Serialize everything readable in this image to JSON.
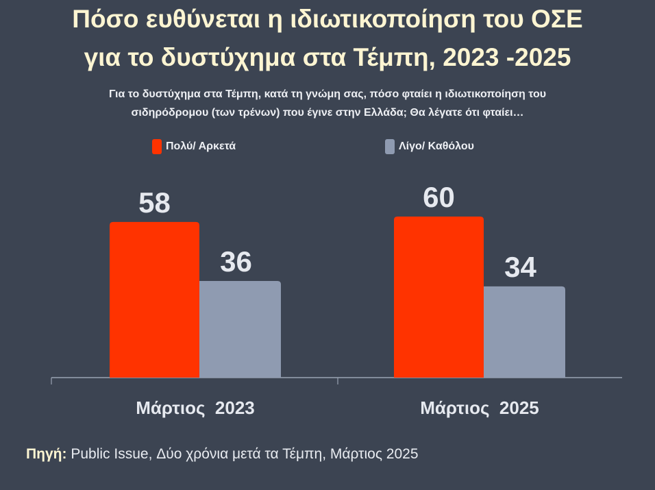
{
  "title_lines": [
    "Πόσο ευθύνεται η ιδιωτικοποίηση του ΟΣΕ",
    "για το δυστύχημα στα Τέμπη, 2023 -2025"
  ],
  "subtitle_lines": [
    "Για το δυστύχημα στα Τέμπη, κατά τη γνώμη σας, πόσο φταίει η ιδιωτικοποίηση του",
    "σιδηρόδρομου (των τρένων) που έγινε στην Ελλάδα; Θα λέγατε ότι φταίει…"
  ],
  "source": {
    "label": "Πηγή:",
    "text": "Public Issue, Δύο χρόνια μετά τα Τέμπη, Μάρτιος 2025"
  },
  "chart_data": {
    "type": "bar",
    "title": "Πόσο ευθύνεται η ιδιωτικοποίηση του ΟΣΕ για το δυστύχημα στα Τέμπη, 2023 -2025",
    "categories": [
      "Μάρτιος  2023",
      "Μάρτιος  2025"
    ],
    "series": [
      {
        "name": "Πολύ/ Αρκετά",
        "color": "#ff3300",
        "values": [
          58,
          60
        ]
      },
      {
        "name": "Λίγο/ Καθόλου",
        "color": "#8f9bb1",
        "values": [
          36,
          34
        ]
      }
    ],
    "xlabel": "",
    "ylabel": "",
    "ylim": [
      0,
      60
    ],
    "grid": false,
    "legend": "top-center"
  }
}
